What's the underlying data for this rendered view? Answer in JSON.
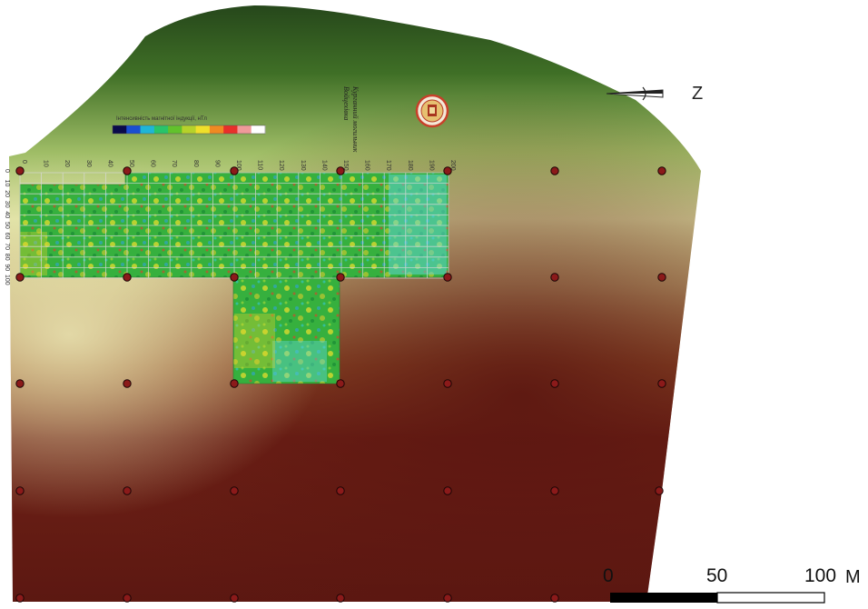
{
  "map": {
    "north_arrow": {
      "label": "Z"
    },
    "scale_bar": {
      "labels": [
        "0",
        "50",
        "100"
      ],
      "unit": "М"
    },
    "caption_lines": [
      "Курганний",
      "могильник",
      "Войцехівка"
    ],
    "legend": {
      "title": "Інтенсивність магнітної індукції, нТл",
      "colors": [
        "#0a0a4a",
        "#1a4fd1",
        "#1fb6d6",
        "#29c46a",
        "#62c22c",
        "#b6d22a",
        "#f0e02a",
        "#f08a22",
        "#e8302a",
        "#f09a9a",
        "#ffffff"
      ]
    },
    "x_ticks": [
      "0",
      "10",
      "20",
      "30",
      "40",
      "50",
      "60",
      "70",
      "80",
      "90",
      "100",
      "110",
      "120",
      "130",
      "140",
      "150",
      "160",
      "170",
      "180",
      "190",
      "200"
    ],
    "y_ticks": [
      "0",
      "10",
      "20",
      "30",
      "40",
      "50",
      "60",
      "70",
      "80",
      "90",
      "100"
    ],
    "terrain_colors": {
      "high": "#2b4a1a",
      "mid": "#c9d27e",
      "low": "#5e1a12"
    },
    "magnetometry_base": "#34b23c",
    "marker_color": "#8b1a1a"
  }
}
